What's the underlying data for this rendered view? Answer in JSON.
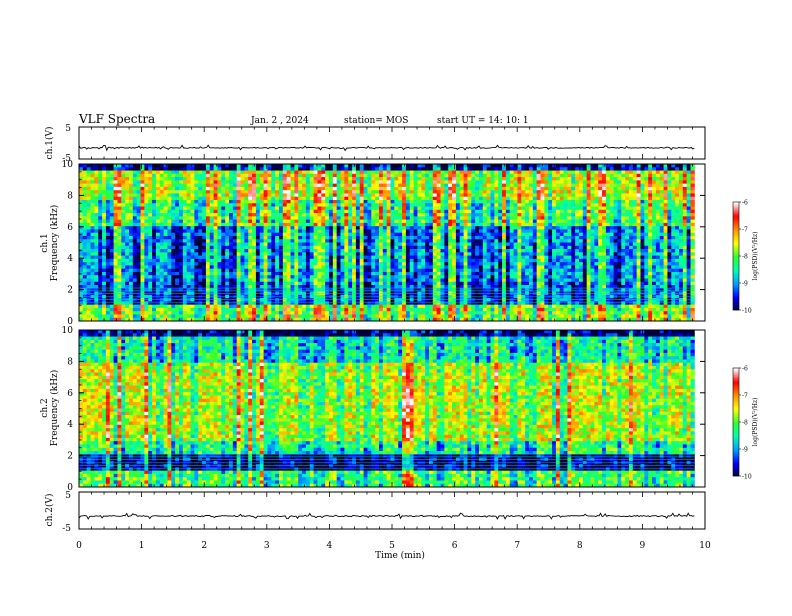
{
  "header": {
    "title": "VLF Spectra",
    "date": "Jan. 2 , 2024",
    "station": "station= MOS",
    "start": "start UT =  14: 10: 1"
  },
  "chart_data": {
    "type": "heatmap",
    "panels": [
      {
        "id": "ch1_voltage",
        "type": "line",
        "ylabel": "ch.1(V)",
        "ylim": [
          -5,
          5
        ],
        "y_ticks": [
          "5",
          "-5"
        ],
        "trace_level": -1.5
      },
      {
        "id": "ch1_spectrogram",
        "type": "heatmap",
        "ylabel_line1": "ch.1",
        "ylabel_line2": "Frequency (kHz)",
        "ylim": [
          0,
          10
        ],
        "y_ticks": [
          "0",
          "2",
          "4",
          "6",
          "8",
          "10"
        ],
        "colorbar": {
          "label": "log(PSD)(V²/Hz)",
          "range": [
            -10,
            -6
          ],
          "ticks": [
            "-6",
            "-7",
            "-8",
            "-9",
            "-10"
          ]
        }
      },
      {
        "id": "ch2_spectrogram",
        "type": "heatmap",
        "ylabel_line1": "ch.2",
        "ylabel_line2": "Frequency (kHz)",
        "ylim": [
          0,
          10
        ],
        "y_ticks": [
          "0",
          "2",
          "4",
          "6",
          "8",
          "10"
        ],
        "colorbar": {
          "label": "log(PSD)(V²/Hz)",
          "range": [
            -10,
            -6
          ],
          "ticks": [
            "-6",
            "-7",
            "-8",
            "-9",
            "-10"
          ]
        }
      },
      {
        "id": "ch2_voltage",
        "type": "line",
        "ylabel": "ch.2(V)",
        "ylim": [
          -5,
          5
        ],
        "y_ticks": [
          "5",
          "-5"
        ],
        "trace_level": -1.5
      }
    ],
    "x_axis": {
      "xlabel": "Time (min)",
      "xlim": [
        0,
        10
      ],
      "ticks": [
        "0",
        "1",
        "2",
        "3",
        "4",
        "5",
        "6",
        "7",
        "8",
        "9",
        "10"
      ],
      "data_end": 9.83
    }
  },
  "colors": {
    "colormap": [
      "#00003c",
      "#0000ff",
      "#00a0ff",
      "#00ffb0",
      "#30ff30",
      "#ffff00",
      "#ff9000",
      "#ff0000",
      "#ffffff"
    ],
    "trace": "#000000",
    "axis": "#000000"
  }
}
